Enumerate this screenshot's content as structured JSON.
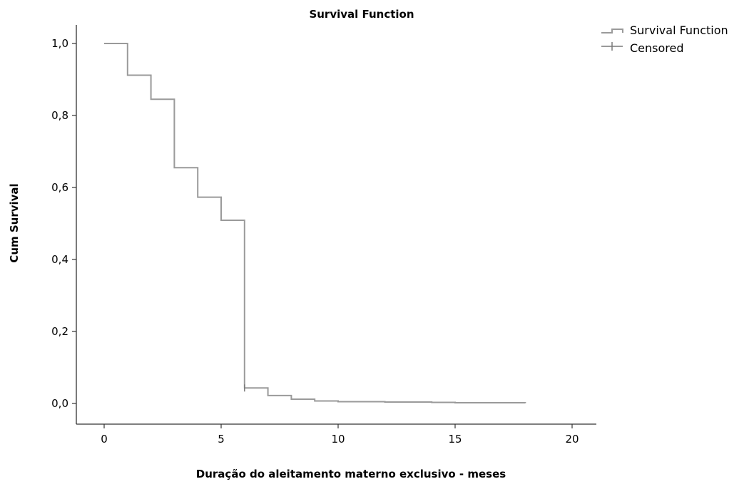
{
  "chart_data": {
    "type": "line",
    "title": "Survival Function",
    "xlabel": "Duração do aleitamento materno exclusivo - meses",
    "ylabel": "Cum Survival",
    "xlim": [
      0,
      20
    ],
    "ylim": [
      0,
      1
    ],
    "x_ticks": [
      0,
      5,
      10,
      15,
      20
    ],
    "x_tick_labels": [
      "0",
      "5",
      "10",
      "15",
      "20"
    ],
    "y_ticks": [
      0,
      0.2,
      0.4,
      0.6,
      0.8,
      1.0
    ],
    "y_tick_labels": [
      "0,0",
      "0,2",
      "0,4",
      "0,6",
      "0,8",
      "1,0"
    ],
    "grid": false,
    "legend_position": "top-right",
    "series": [
      {
        "name": "Survival Function",
        "step": true,
        "color": "#9a9a9a",
        "x": [
          0,
          1,
          2,
          3,
          4,
          5,
          6,
          7,
          8,
          9,
          10,
          12,
          14,
          15,
          18
        ],
        "y": [
          1.0,
          0.912,
          0.845,
          0.655,
          0.573,
          0.509,
          0.043,
          0.022,
          0.012,
          0.007,
          0.005,
          0.004,
          0.003,
          0.002,
          0.001
        ]
      },
      {
        "name": "Censored",
        "marker": "+",
        "color": "#7a7a7a",
        "x": [
          6
        ],
        "y": [
          0.043
        ]
      }
    ]
  }
}
